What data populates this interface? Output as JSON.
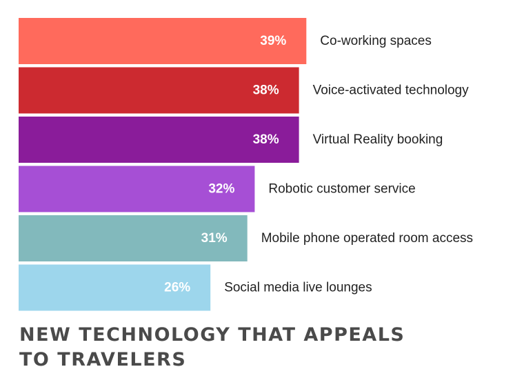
{
  "chart_data": {
    "type": "bar",
    "orientation": "horizontal",
    "title_lines": [
      "NEW TECHNOLOGY THAT APPEALS",
      "TO TRAVELERS"
    ],
    "xlabel": "",
    "ylabel": "",
    "categories": [
      "Co-working spaces",
      "Voice-activated technology",
      "Virtual Reality booking",
      "Robotic customer service",
      "Mobile phone operated room access",
      "Social media live lounges"
    ],
    "values": [
      39,
      38,
      38,
      32,
      31,
      26
    ],
    "value_labels": [
      "39%",
      "38%",
      "38%",
      "32%",
      "31%",
      "26%"
    ],
    "unit": "%",
    "colors": [
      "#ff6a5c",
      "#cc2a30",
      "#8a1c9a",
      "#a64fd5",
      "#82b9bc",
      "#9dd6ec"
    ],
    "grid": false,
    "legend": "none"
  }
}
